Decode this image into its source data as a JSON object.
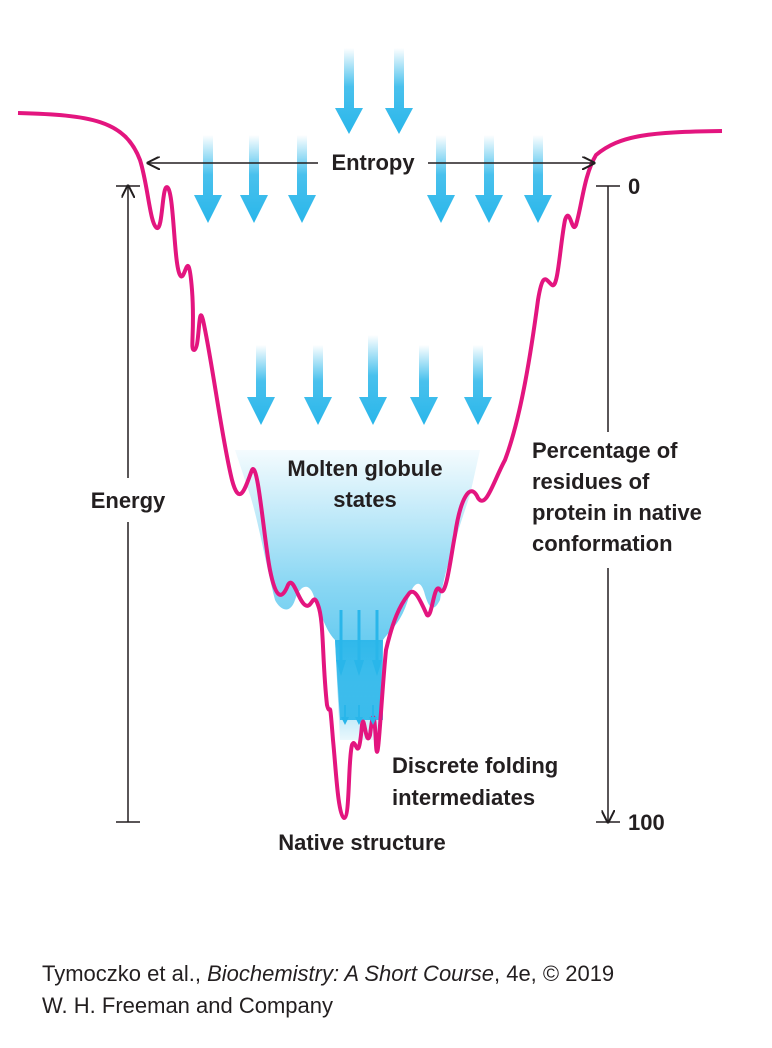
{
  "diagram": {
    "entropy_label": "Entropy",
    "energy_label": "Energy",
    "percentage_label": [
      "Percentage of",
      "residues of",
      "protein in native",
      "conformation"
    ],
    "scale_top": "0",
    "scale_bottom": "100",
    "molten_label": [
      "Molten globule",
      "states"
    ],
    "discrete_label": [
      "Discrete folding",
      "intermediates"
    ],
    "native_label": "Native structure",
    "colors": {
      "landscape_line": "#e3157f",
      "arrow": "#29b6ea",
      "text": "#231f20"
    }
  },
  "credit": {
    "authors": "Tymoczko et al., ",
    "book": "Biochemistry: A Short Course",
    "edition": ", 4e, © 2019",
    "publisher": "W. H. Freeman and Company"
  }
}
